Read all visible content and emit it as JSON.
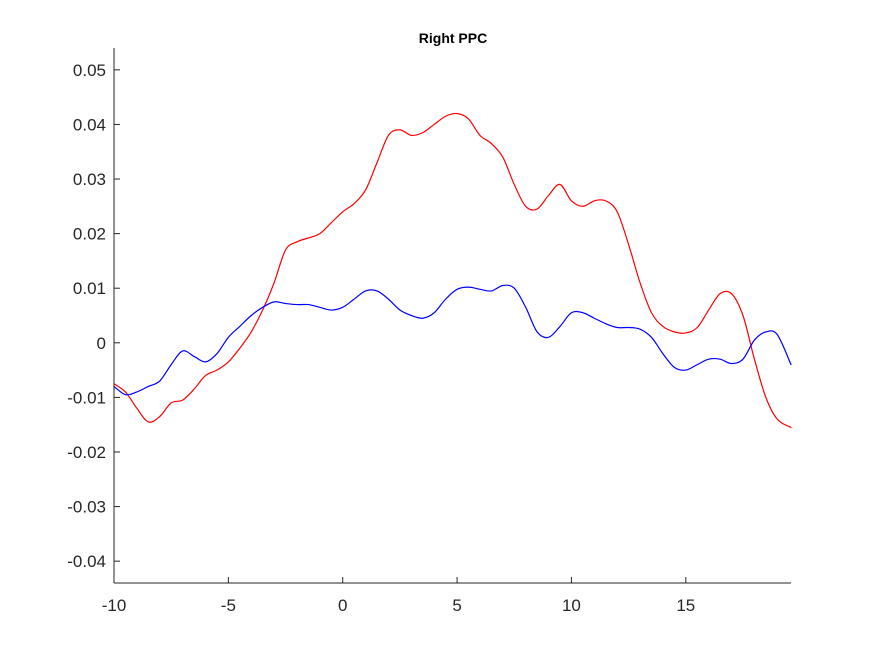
{
  "chart_data": {
    "type": "line",
    "title": "Right PPC",
    "xlabel": "",
    "ylabel": "",
    "xlim": [
      -10,
      19.6
    ],
    "ylim": [
      -0.044,
      0.054
    ],
    "xticks": [
      -10,
      -5,
      0,
      5,
      10,
      15
    ],
    "xtick_labels": [
      "-10",
      "-5",
      "0",
      "5",
      "10",
      "15"
    ],
    "yticks": [
      -0.04,
      -0.03,
      -0.02,
      -0.01,
      0,
      0.01,
      0.02,
      0.03,
      0.04,
      0.05
    ],
    "ytick_labels": [
      "-0.04",
      "-0.03",
      "-0.02",
      "-0.01",
      "0",
      "0.01",
      "0.02",
      "0.03",
      "0.04",
      "0.05"
    ],
    "grid": false,
    "series": [
      {
        "color": "#ff0000",
        "x": [
          -10,
          -9.5,
          -9,
          -8.5,
          -8,
          -7.5,
          -7,
          -6.5,
          -6,
          -5.5,
          -5,
          -4.5,
          -4,
          -3.5,
          -3,
          -2.5,
          -2,
          -1.5,
          -1,
          -0.5,
          0,
          0.5,
          1,
          1.5,
          2,
          2.5,
          3,
          3.5,
          4,
          4.5,
          5,
          5.5,
          6,
          6.5,
          7,
          7.5,
          8,
          8.5,
          9,
          9.5,
          10,
          10.5,
          11,
          11.5,
          12,
          12.5,
          13,
          13.5,
          14,
          14.5,
          15,
          15.5,
          16,
          16.5,
          17,
          17.5,
          18,
          18.5,
          19,
          19.6
        ],
        "y": [
          -0.0075,
          -0.009,
          -0.012,
          -0.0145,
          -0.0135,
          -0.011,
          -0.0105,
          -0.0085,
          -0.006,
          -0.005,
          -0.0035,
          -0.001,
          0.002,
          0.006,
          0.011,
          0.017,
          0.0185,
          0.0192,
          0.02,
          0.022,
          0.024,
          0.0255,
          0.028,
          0.033,
          0.038,
          0.039,
          0.038,
          0.0385,
          0.04,
          0.0415,
          0.042,
          0.041,
          0.038,
          0.0365,
          0.034,
          0.029,
          0.025,
          0.0245,
          0.027,
          0.029,
          0.026,
          0.025,
          0.026,
          0.026,
          0.024,
          0.018,
          0.011,
          0.0055,
          0.003,
          0.002,
          0.0018,
          0.0028,
          0.006,
          0.009,
          0.009,
          0.005,
          -0.003,
          -0.01,
          -0.014,
          -0.0155
        ]
      },
      {
        "color": "#0000ff",
        "x": [
          -10,
          -9.5,
          -9,
          -8.5,
          -8,
          -7.5,
          -7,
          -6.5,
          -6,
          -5.5,
          -5,
          -4.5,
          -4,
          -3.5,
          -3,
          -2.5,
          -2,
          -1.5,
          -1,
          -0.5,
          0,
          0.5,
          1,
          1.5,
          2,
          2.5,
          3,
          3.5,
          4,
          4.5,
          5,
          5.5,
          6,
          6.5,
          7,
          7.5,
          8,
          8.5,
          9,
          9.5,
          10,
          10.5,
          11,
          11.5,
          12,
          12.5,
          13,
          13.5,
          14,
          14.5,
          15,
          15.5,
          16,
          16.5,
          17,
          17.5,
          18,
          18.5,
          19,
          19.6
        ],
        "y": [
          -0.008,
          -0.0095,
          -0.009,
          -0.008,
          -0.007,
          -0.004,
          -0.0015,
          -0.0025,
          -0.0035,
          -0.002,
          0.001,
          0.003,
          0.005,
          0.0065,
          0.0075,
          0.0072,
          0.007,
          0.007,
          0.0065,
          0.006,
          0.0065,
          0.008,
          0.0095,
          0.0095,
          0.008,
          0.006,
          0.005,
          0.0045,
          0.0055,
          0.008,
          0.0098,
          0.0102,
          0.0098,
          0.0095,
          0.0105,
          0.01,
          0.0065,
          0.002,
          0.001,
          0.003,
          0.0055,
          0.0055,
          0.0045,
          0.0035,
          0.0028,
          0.0028,
          0.0025,
          0.001,
          -0.002,
          -0.0045,
          -0.005,
          -0.004,
          -0.003,
          -0.003,
          -0.0038,
          -0.003,
          0.0005,
          0.002,
          0.0015,
          -0.004
        ]
      }
    ]
  }
}
